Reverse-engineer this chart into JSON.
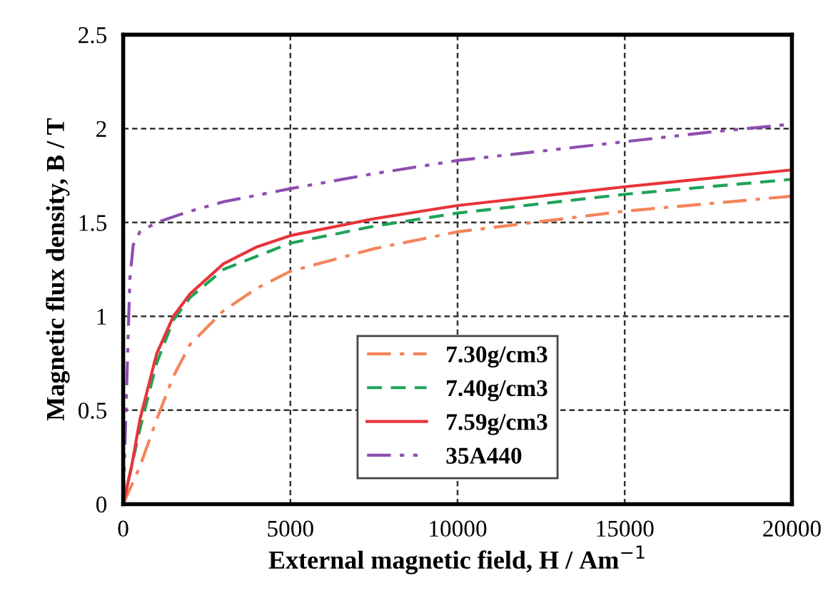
{
  "chart_data": {
    "type": "line",
    "xlabel": "External magnetic field, H / Am$^{−1}$",
    "ylabel": "Magnetic flux density, B / T",
    "xlim": [
      0,
      20000
    ],
    "ylim": [
      0,
      2.5
    ],
    "xticks": [
      0,
      5000,
      10000,
      15000,
      20000
    ],
    "yticks": [
      0,
      0.5,
      1,
      1.5,
      2,
      2.5
    ],
    "grid": true,
    "legend": "bottom",
    "marker": "none",
    "series": [
      {
        "name": "7.30g/cm3",
        "color": "#f4845a",
        "line_style": "dashdot",
        "x": [
          0,
          500,
          1000,
          1500,
          2000,
          3000,
          4000,
          5000,
          7500,
          10000,
          15000,
          20000
        ],
        "values": [
          0,
          0.2,
          0.45,
          0.68,
          0.85,
          1.03,
          1.15,
          1.24,
          1.36,
          1.45,
          1.56,
          1.64
        ]
      },
      {
        "name": "7.40g/cm3",
        "color": "#1fa35a",
        "line_style": "dashed",
        "x": [
          0,
          500,
          1000,
          1500,
          2000,
          3000,
          5000,
          7500,
          10000,
          15000,
          20000
        ],
        "values": [
          0,
          0.4,
          0.75,
          0.98,
          1.1,
          1.25,
          1.39,
          1.48,
          1.55,
          1.65,
          1.73
        ]
      },
      {
        "name": "7.59g/cm3",
        "color": "#e8343a",
        "line_style": "solid",
        "x": [
          0,
          250,
          500,
          1000,
          1500,
          2000,
          3000,
          4000,
          5000,
          7500,
          10000,
          15000,
          20000
        ],
        "values": [
          0,
          0.2,
          0.45,
          0.8,
          1.0,
          1.12,
          1.28,
          1.37,
          1.43,
          1.52,
          1.59,
          1.69,
          1.78
        ]
      },
      {
        "name": "35A440",
        "color": "#8e4fb0",
        "line_style": "dashdotdot",
        "x": [
          0,
          100,
          200,
          300,
          500,
          1000,
          2000,
          3000,
          5000,
          7500,
          10000,
          12500,
          15000,
          17500,
          19800
        ],
        "values": [
          0,
          0.6,
          1.2,
          1.38,
          1.45,
          1.5,
          1.56,
          1.61,
          1.68,
          1.76,
          1.83,
          1.88,
          1.93,
          1.98,
          2.02
        ]
      }
    ]
  }
}
